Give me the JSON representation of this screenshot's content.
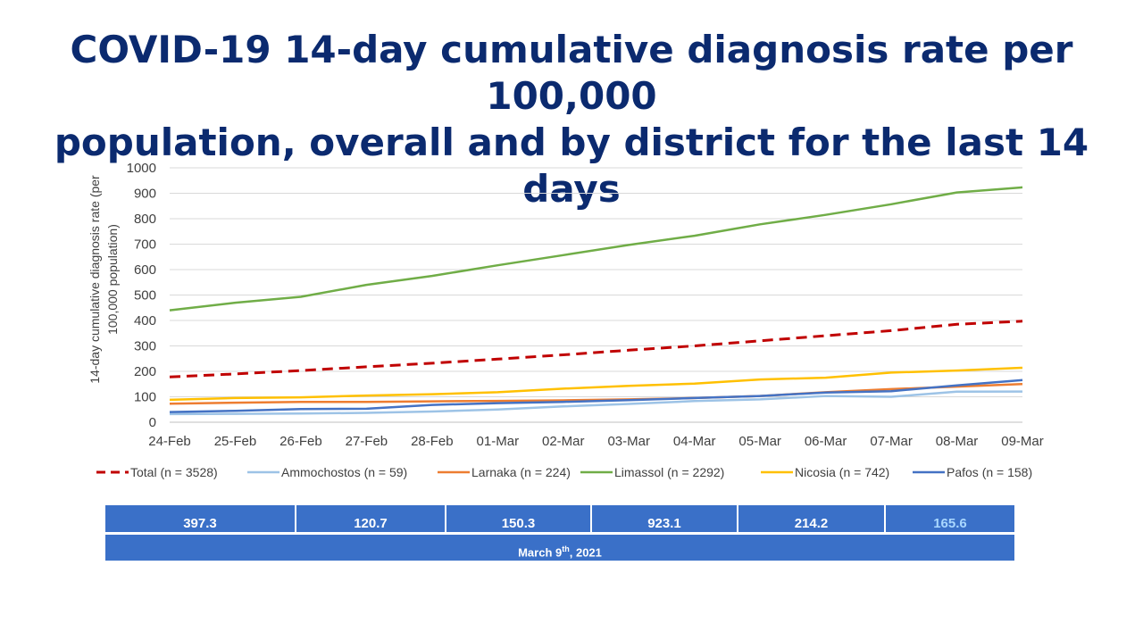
{
  "title": {
    "line1": "COVID-19 14-day cumulative diagnosis rate per 100,000",
    "line2": "population, overall and by district for the last 14 days"
  },
  "chart_data": {
    "type": "line",
    "ylabel_line1": "14-day cumulative diagnosis rate (per",
    "ylabel_line2": "100,000 population)",
    "ylim": [
      0,
      1000
    ],
    "yticks": [
      0,
      100,
      200,
      300,
      400,
      500,
      600,
      700,
      800,
      900,
      1000
    ],
    "grid": true,
    "legend_position": "bottom",
    "x": [
      "24-Feb",
      "25-Feb",
      "26-Feb",
      "27-Feb",
      "28-Feb",
      "01-Mar",
      "02-Mar",
      "03-Mar",
      "04-Mar",
      "05-Mar",
      "06-Mar",
      "07-Mar",
      "08-Mar",
      "09-Mar"
    ],
    "series": [
      {
        "name": "Total (n = 3528)",
        "color": "#c00000",
        "dashed": true,
        "values": [
          178,
          190,
          203,
          218,
          232,
          248,
          265,
          283,
          300,
          320,
          340,
          360,
          385,
          397.3
        ]
      },
      {
        "name": "Ammochostos (n = 59)",
        "color": "#9dc3e6",
        "dashed": false,
        "values": [
          32,
          33,
          34,
          37,
          42,
          50,
          62,
          72,
          83,
          90,
          103,
          100,
          120,
          120.7
        ]
      },
      {
        "name": "Larnaka (n = 224)",
        "color": "#ed7d31",
        "dashed": false,
        "values": [
          73,
          77,
          80,
          80,
          82,
          84,
          86,
          90,
          95,
          103,
          118,
          130,
          140,
          150.3
        ]
      },
      {
        "name": "Limassol (n = 2292)",
        "color": "#70ad47",
        "dashed": false,
        "values": [
          440,
          470,
          493,
          540,
          575,
          617,
          657,
          697,
          733,
          778,
          815,
          857,
          903,
          923.1
        ]
      },
      {
        "name": "Nicosia (n = 742)",
        "color": "#ffc000",
        "dashed": false,
        "values": [
          88,
          95,
          98,
          105,
          110,
          118,
          132,
          143,
          152,
          168,
          175,
          195,
          203,
          214.2
        ]
      },
      {
        "name": "Pafos (n = 158)",
        "color": "#4472c4",
        "dashed": false,
        "values": [
          40,
          45,
          52,
          53,
          68,
          75,
          80,
          87,
          95,
          103,
          117,
          122,
          145,
          165.6
        ]
      }
    ]
  },
  "summary": {
    "values": [
      "397.3",
      "120.7",
      "150.3",
      "923.1",
      "214.2",
      "165.6"
    ],
    "date_main": "March 9",
    "date_sup": "th",
    "date_year": ", 2021"
  }
}
